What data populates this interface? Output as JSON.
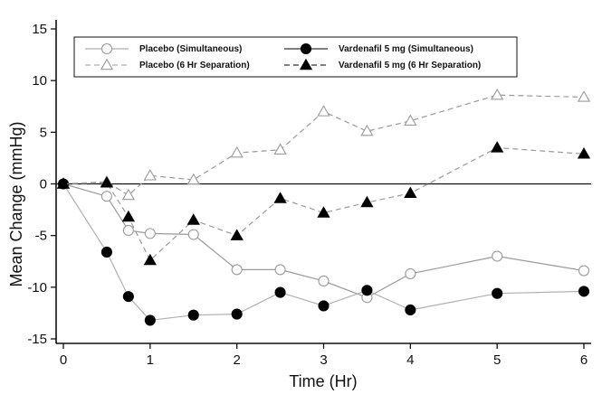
{
  "chart_data": {
    "type": "line",
    "title": "",
    "xlabel": "Time (Hr)",
    "ylabel": "Mean Change (mmHg)",
    "xlim": [
      0,
      6
    ],
    "ylim": [
      -15,
      15
    ],
    "x_ticks": [
      0,
      1,
      2,
      3,
      4,
      5,
      6
    ],
    "y_ticks": [
      -15,
      -10,
      -5,
      0,
      5,
      10,
      15
    ],
    "x_tick_labels": [
      "0",
      "1",
      "2",
      "3",
      "4",
      "5",
      "6"
    ],
    "y_tick_labels": [
      "-15",
      "-10",
      "-5",
      "0",
      "5",
      "10",
      "15"
    ],
    "reference_line_y": 0,
    "grid": false,
    "legend_position": "top",
    "series": [
      {
        "name": "Placebo (Simultaneous)",
        "marker": "open-circle",
        "line": "solid",
        "color": "#9a9a9a",
        "points": [
          [
            0,
            0
          ],
          [
            0.5,
            -1.2
          ],
          [
            0.75,
            -4.5
          ],
          [
            1,
            -4.8
          ],
          [
            1.5,
            -4.9
          ],
          [
            2,
            -8.3
          ],
          [
            2.5,
            -8.3
          ],
          [
            3,
            -9.4
          ],
          [
            3.5,
            -11.0
          ],
          [
            4,
            -8.7
          ],
          [
            5,
            -7.0
          ],
          [
            6,
            -8.4
          ]
        ]
      },
      {
        "name": "Placebo (6 Hr Separation)",
        "marker": "open-triangle",
        "line": "dashed",
        "color": "#9a9a9a",
        "points": [
          [
            0,
            0
          ],
          [
            0.5,
            0.2
          ],
          [
            0.75,
            -1.1
          ],
          [
            1,
            0.8
          ],
          [
            1.5,
            0.4
          ],
          [
            2,
            3.0
          ],
          [
            2.5,
            3.3
          ],
          [
            3,
            7.0
          ],
          [
            3.5,
            5.1
          ],
          [
            4,
            6.1
          ],
          [
            5,
            8.6
          ],
          [
            6,
            8.4
          ]
        ]
      },
      {
        "name": "Vardenafil 5 mg (Simultaneous)",
        "marker": "filled-circle",
        "line": "solid",
        "color": "#b0b0b0",
        "points": [
          [
            0,
            0
          ],
          [
            0.5,
            -6.6
          ],
          [
            0.75,
            -10.9
          ],
          [
            1,
            -13.2
          ],
          [
            1.5,
            -12.7
          ],
          [
            2,
            -12.6
          ],
          [
            2.5,
            -10.5
          ],
          [
            3,
            -11.8
          ],
          [
            3.5,
            -10.3
          ],
          [
            4,
            -12.2
          ],
          [
            5,
            -10.6
          ],
          [
            6,
            -10.4
          ]
        ]
      },
      {
        "name": "Vardenafil 5 mg (6 Hr Separation)",
        "marker": "filled-triangle",
        "line": "dashed",
        "color": "#9a9a9a",
        "points": [
          [
            0,
            0
          ],
          [
            0.5,
            0.1
          ],
          [
            0.75,
            -3.2
          ],
          [
            1,
            -7.4
          ],
          [
            1.5,
            -3.5
          ],
          [
            2,
            -5.0
          ],
          [
            2.5,
            -1.4
          ],
          [
            3,
            -2.8
          ],
          [
            3.5,
            -1.8
          ],
          [
            4,
            -0.9
          ],
          [
            5,
            3.5
          ],
          [
            6,
            2.9
          ]
        ]
      }
    ]
  }
}
